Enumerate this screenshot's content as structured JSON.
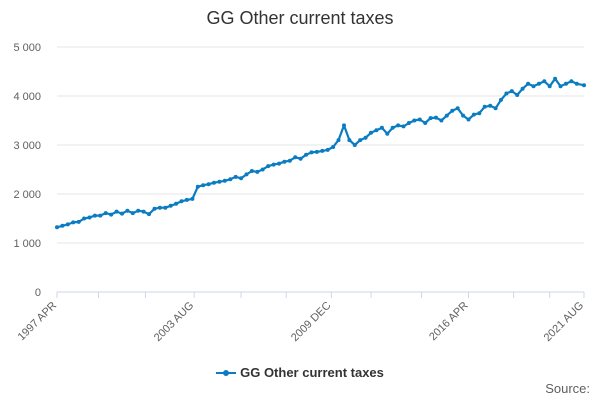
{
  "colors": {
    "series": "#0a7cc1",
    "grid": "#e6e6e6",
    "axis": "#ccd6eb"
  },
  "legend": {
    "label": "GG Other current taxes"
  },
  "credit": "Source:",
  "chart_data": {
    "type": "line",
    "title": "GG Other current taxes",
    "xlabel": "",
    "ylabel": "",
    "ylim": [
      0,
      5000
    ],
    "yticks": [
      {
        "value": 0,
        "label": "0"
      },
      {
        "value": 1000,
        "label": "1 000"
      },
      {
        "value": 2000,
        "label": "2 000"
      },
      {
        "value": 3000,
        "label": "3 000"
      },
      {
        "value": 4000,
        "label": "4 000"
      },
      {
        "value": 5000,
        "label": "5 000"
      }
    ],
    "xrange": [
      "1997-04",
      "2021-08"
    ],
    "xticks": [
      {
        "date": "1997-04",
        "label": "1997 APR"
      },
      {
        "date": "2003-08",
        "label": "2003 AUG"
      },
      {
        "date": "2009-12",
        "label": "2009 DEC"
      },
      {
        "date": "2016-04",
        "label": "2016 APR"
      },
      {
        "date": "2021-08",
        "label": "2021 AUG"
      }
    ],
    "minor_ticks": [
      "1999-03",
      "2001-05",
      "2005-10",
      "2007-11",
      "2011-10",
      "2014-02",
      "2018-05",
      "2020-01"
    ],
    "grid": true,
    "legend_position": "bottom",
    "series": [
      {
        "name": "GG Other current taxes",
        "x": [
          "1997-04",
          "1997-07",
          "1997-10",
          "1998-01",
          "1998-04",
          "1998-07",
          "1998-10",
          "1999-01",
          "1999-04",
          "1999-07",
          "1999-10",
          "2000-01",
          "2000-04",
          "2000-07",
          "2000-10",
          "2001-01",
          "2001-04",
          "2001-07",
          "2001-10",
          "2002-01",
          "2002-04",
          "2002-07",
          "2002-10",
          "2003-01",
          "2003-04",
          "2003-07",
          "2003-10",
          "2004-01",
          "2004-04",
          "2004-07",
          "2004-10",
          "2005-01",
          "2005-04",
          "2005-07",
          "2005-10",
          "2006-01",
          "2006-04",
          "2006-07",
          "2006-10",
          "2007-01",
          "2007-04",
          "2007-07",
          "2007-10",
          "2008-01",
          "2008-04",
          "2008-07",
          "2008-10",
          "2009-01",
          "2009-04",
          "2009-07",
          "2009-10",
          "2010-01",
          "2010-04",
          "2010-07",
          "2010-10",
          "2011-01",
          "2011-04",
          "2011-07",
          "2011-10",
          "2012-01",
          "2012-04",
          "2012-07",
          "2012-10",
          "2013-01",
          "2013-04",
          "2013-07",
          "2013-10",
          "2014-01",
          "2014-04",
          "2014-07",
          "2014-10",
          "2015-01",
          "2015-04",
          "2015-07",
          "2015-10",
          "2016-01",
          "2016-04",
          "2016-07",
          "2016-10",
          "2017-01",
          "2017-04",
          "2017-07",
          "2017-10",
          "2018-01",
          "2018-04",
          "2018-07",
          "2018-10",
          "2019-01",
          "2019-04",
          "2019-07",
          "2019-10",
          "2020-01",
          "2020-04",
          "2020-07",
          "2020-10",
          "2021-01",
          "2021-04",
          "2021-08"
        ],
        "y": [
          1320,
          1350,
          1380,
          1420,
          1430,
          1500,
          1520,
          1560,
          1560,
          1610,
          1580,
          1640,
          1600,
          1660,
          1610,
          1660,
          1640,
          1590,
          1700,
          1720,
          1720,
          1760,
          1800,
          1850,
          1880,
          1900,
          2150,
          2180,
          2200,
          2230,
          2250,
          2270,
          2300,
          2350,
          2320,
          2400,
          2470,
          2450,
          2500,
          2570,
          2600,
          2620,
          2660,
          2680,
          2750,
          2720,
          2800,
          2850,
          2860,
          2880,
          2900,
          2960,
          3100,
          3400,
          3100,
          3000,
          3100,
          3150,
          3250,
          3300,
          3350,
          3230,
          3350,
          3400,
          3380,
          3450,
          3500,
          3520,
          3450,
          3550,
          3560,
          3500,
          3600,
          3700,
          3750,
          3600,
          3520,
          3620,
          3650,
          3780,
          3800,
          3750,
          3920,
          4050,
          4100,
          4020,
          4150,
          4250,
          4200,
          4250,
          4300,
          4200,
          4350,
          4200,
          4250,
          4300,
          4250,
          4220
        ]
      }
    ]
  }
}
